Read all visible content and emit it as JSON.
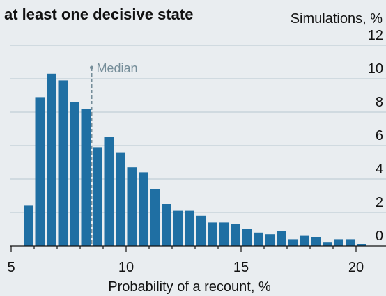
{
  "chart_data": {
    "type": "bar",
    "title": "at least one decisive state",
    "xlabel": "Probability of a recount, %",
    "ylabel": "Simulations, %",
    "xlim": [
      5,
      20.5
    ],
    "ylim": [
      0,
      12
    ],
    "xticks": [
      5,
      10,
      15,
      20
    ],
    "yticks": [
      0,
      2,
      4,
      6,
      8,
      10,
      12
    ],
    "y_axis_position": "right",
    "grid": true,
    "bin_width": 0.5,
    "bins": [
      {
        "x": 5.75,
        "value": 2.4
      },
      {
        "x": 6.25,
        "value": 8.9
      },
      {
        "x": 6.75,
        "value": 10.3
      },
      {
        "x": 7.25,
        "value": 9.9
      },
      {
        "x": 7.75,
        "value": 8.6
      },
      {
        "x": 8.25,
        "value": 8.2
      },
      {
        "x": 8.75,
        "value": 5.9
      },
      {
        "x": 9.25,
        "value": 6.5
      },
      {
        "x": 9.75,
        "value": 5.6
      },
      {
        "x": 10.25,
        "value": 4.7
      },
      {
        "x": 10.75,
        "value": 4.4
      },
      {
        "x": 11.25,
        "value": 3.4
      },
      {
        "x": 11.75,
        "value": 2.5
      },
      {
        "x": 12.25,
        "value": 2.1
      },
      {
        "x": 12.75,
        "value": 2.1
      },
      {
        "x": 13.25,
        "value": 1.8
      },
      {
        "x": 13.75,
        "value": 1.4
      },
      {
        "x": 14.25,
        "value": 1.4
      },
      {
        "x": 14.75,
        "value": 1.3
      },
      {
        "x": 15.25,
        "value": 1.0
      },
      {
        "x": 15.75,
        "value": 0.8
      },
      {
        "x": 16.25,
        "value": 0.7
      },
      {
        "x": 16.75,
        "value": 0.9
      },
      {
        "x": 17.25,
        "value": 0.4
      },
      {
        "x": 17.75,
        "value": 0.6
      },
      {
        "x": 18.25,
        "value": 0.5
      },
      {
        "x": 18.75,
        "value": 0.2
      },
      {
        "x": 19.25,
        "value": 0.4
      },
      {
        "x": 19.75,
        "value": 0.4
      },
      {
        "x": 20.25,
        "value": 0.1
      }
    ],
    "median": {
      "label": "Median",
      "x": 8.5
    },
    "colors": {
      "bar": "#1f6fa3",
      "median": "#758d99",
      "grid": "#b7c6cf",
      "background": "#e9edf0"
    }
  }
}
